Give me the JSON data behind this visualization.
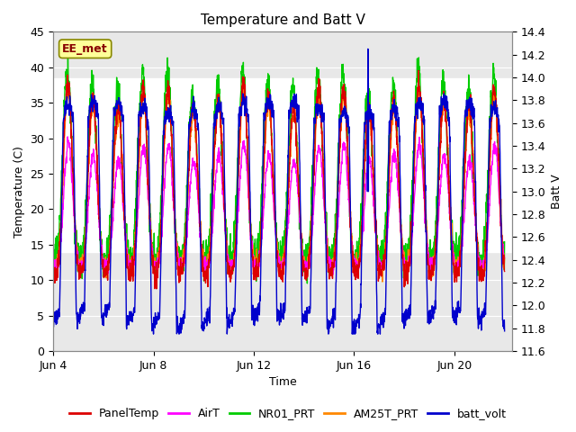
{
  "title": "Temperature and Batt V",
  "xlabel": "Time",
  "ylabel_left": "Temperature (C)",
  "ylabel_right": "Batt V",
  "xlim_days": [
    3.0,
    21.3
  ],
  "ylim_left": [
    0,
    45
  ],
  "ylim_right": [
    11.6,
    14.4
  ],
  "x_ticks_labels": [
    "Jun 4",
    "Jun 8",
    "Jun 12",
    "Jun 16",
    "Jun 20"
  ],
  "x_ticks_days": [
    3,
    7,
    11,
    15,
    19
  ],
  "y_ticks_left": [
    0,
    5,
    10,
    15,
    20,
    25,
    30,
    35,
    40,
    45
  ],
  "y_ticks_right": [
    11.6,
    11.8,
    12.0,
    12.2,
    12.4,
    12.6,
    12.8,
    13.0,
    13.2,
    13.4,
    13.6,
    13.8,
    14.0,
    14.2,
    14.4
  ],
  "shaded_ymin": 14.0,
  "shaded_ymax": 38.5,
  "annotation_label": "EE_met",
  "lines": {
    "PanelTemp": {
      "color": "#dd0000",
      "lw": 1.0
    },
    "AirT": {
      "color": "#ff00ff",
      "lw": 1.0
    },
    "NR01_PRT": {
      "color": "#00cc00",
      "lw": 1.0
    },
    "AM25T_PRT": {
      "color": "#ff8800",
      "lw": 1.0
    },
    "batt_volt": {
      "color": "#0000cc",
      "lw": 1.0
    }
  },
  "background_color": "#ffffff",
  "plot_bg_color": "#e8e8e8",
  "font_size": 9,
  "title_font_size": 11
}
